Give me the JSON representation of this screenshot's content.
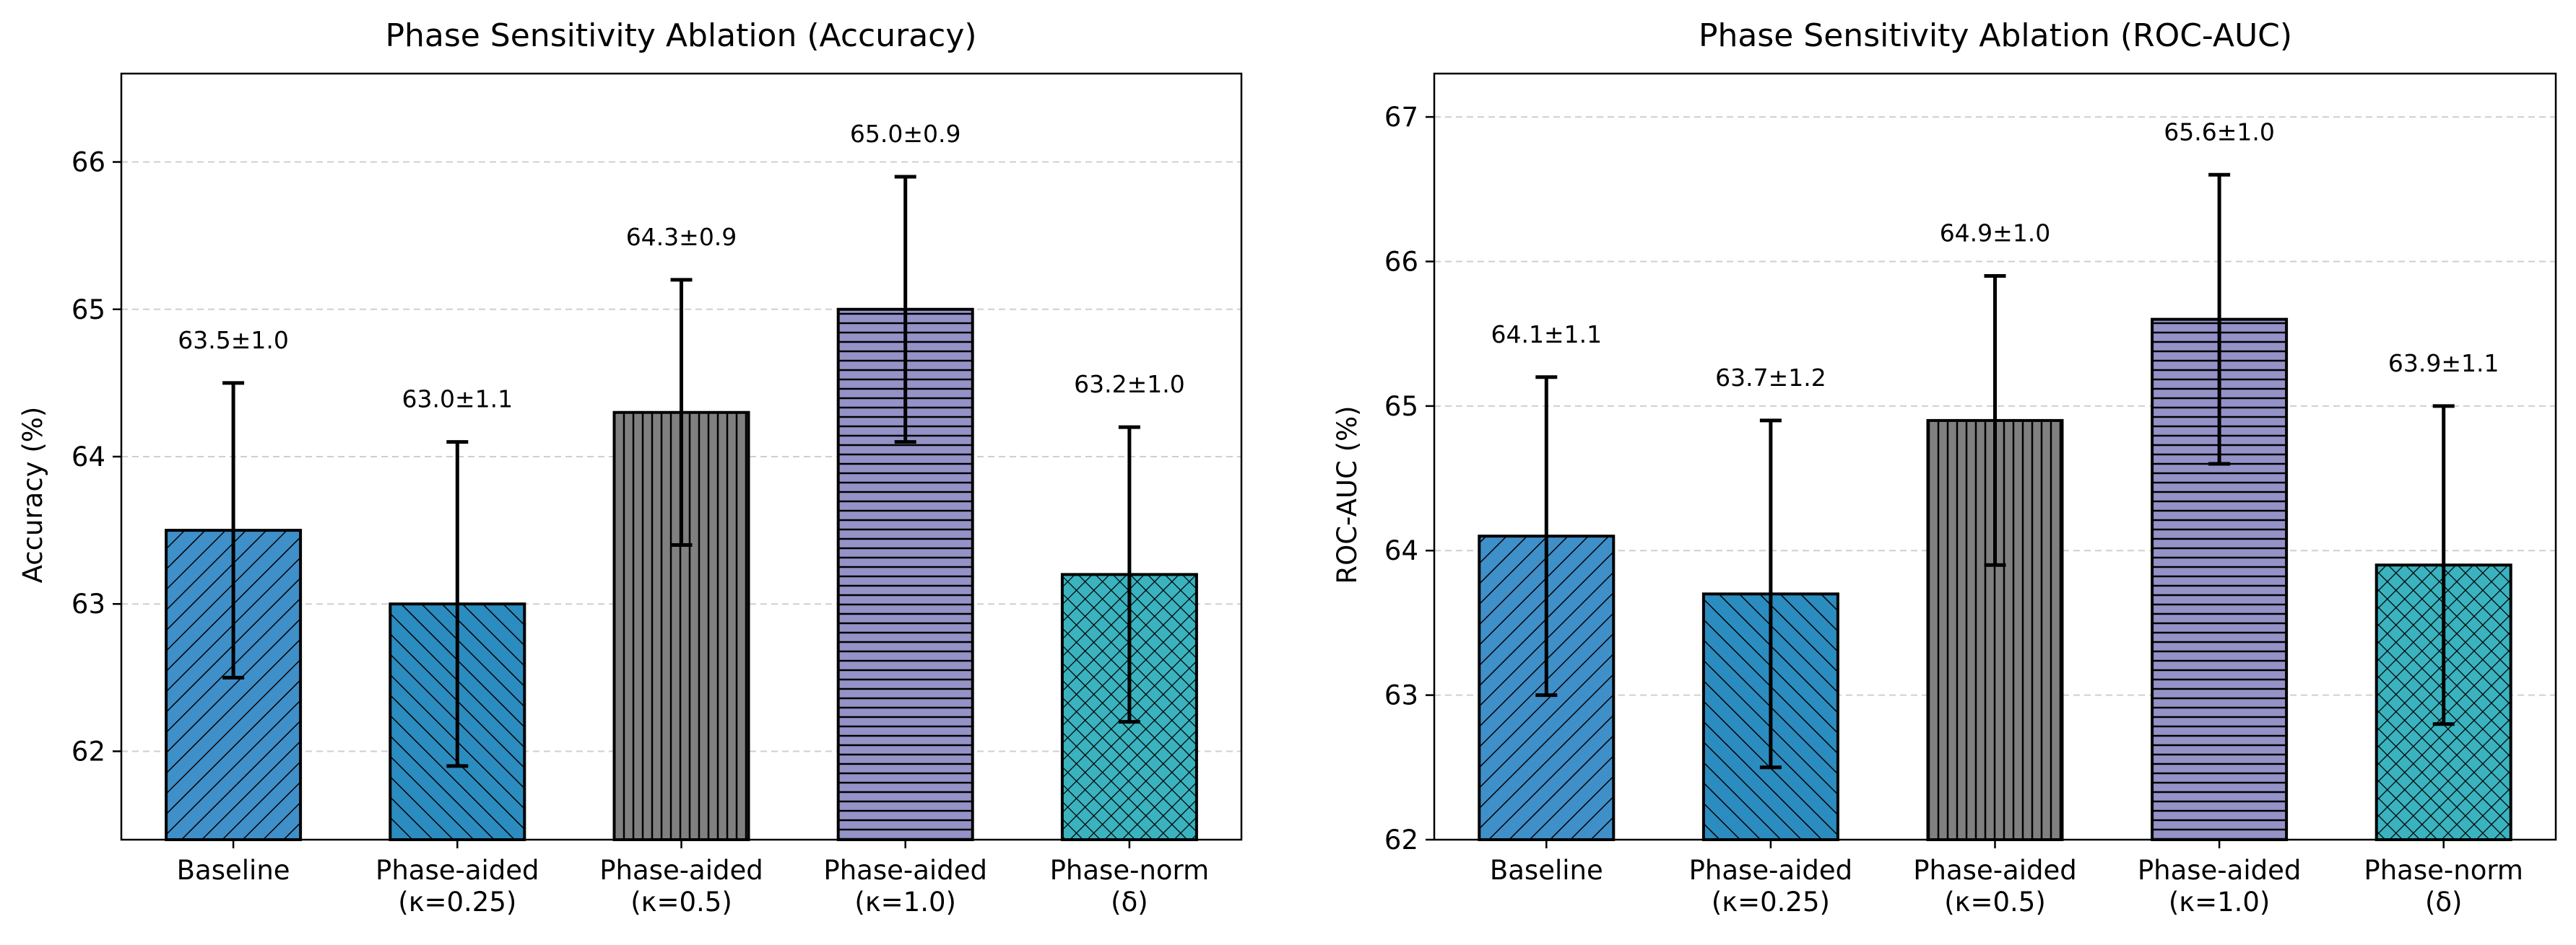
{
  "chart_data": [
    {
      "type": "bar",
      "title": "Phase Sensitivity Ablation (Accuracy)",
      "xlabel": "",
      "ylabel": "Accuracy (%)",
      "ylim": [
        61.4,
        66.6
      ],
      "yticks": [
        62,
        63,
        64,
        65,
        66
      ],
      "grid": "y-dashed",
      "categories": [
        [
          "Baseline"
        ],
        [
          "Phase-aided",
          "(κ=0.25)"
        ],
        [
          "Phase-aided",
          "(κ=0.5)"
        ],
        [
          "Phase-aided",
          "(κ=1.0)"
        ],
        [
          "Phase-norm",
          "(δ)"
        ]
      ],
      "values": [
        63.5,
        63.0,
        64.3,
        65.0,
        63.2
      ],
      "errors": [
        1.0,
        1.1,
        0.9,
        0.9,
        1.0
      ],
      "data_labels": [
        "63.5±1.0",
        "63.0±1.1",
        "64.3±0.9",
        "65.0±0.9",
        "63.2±1.0"
      ],
      "colors": [
        "#3f8fc9",
        "#2b8cbf",
        "#808080",
        "#9592c8",
        "#3ab3bf"
      ],
      "hatches": [
        "diag-up",
        "diag-down",
        "vertical",
        "horizontal",
        "cross"
      ]
    },
    {
      "type": "bar",
      "title": "Phase Sensitivity Ablation (ROC-AUC)",
      "xlabel": "",
      "ylabel": "ROC-AUC (%)",
      "ylim": [
        62.0,
        67.3
      ],
      "yticks": [
        62,
        63,
        64,
        65,
        66,
        67
      ],
      "grid": "y-dashed",
      "categories": [
        [
          "Baseline"
        ],
        [
          "Phase-aided",
          "(κ=0.25)"
        ],
        [
          "Phase-aided",
          "(κ=0.5)"
        ],
        [
          "Phase-aided",
          "(κ=1.0)"
        ],
        [
          "Phase-norm",
          "(δ)"
        ]
      ],
      "values": [
        64.1,
        63.7,
        64.9,
        65.6,
        63.9
      ],
      "errors": [
        1.1,
        1.2,
        1.0,
        1.0,
        1.1
      ],
      "data_labels": [
        "64.1±1.1",
        "63.7±1.2",
        "64.9±1.0",
        "65.6±1.0",
        "63.9±1.1"
      ],
      "colors": [
        "#3f8fc9",
        "#2b8cbf",
        "#808080",
        "#9592c8",
        "#3ab3bf"
      ],
      "hatches": [
        "diag-up",
        "diag-down",
        "vertical",
        "horizontal",
        "cross"
      ]
    }
  ]
}
